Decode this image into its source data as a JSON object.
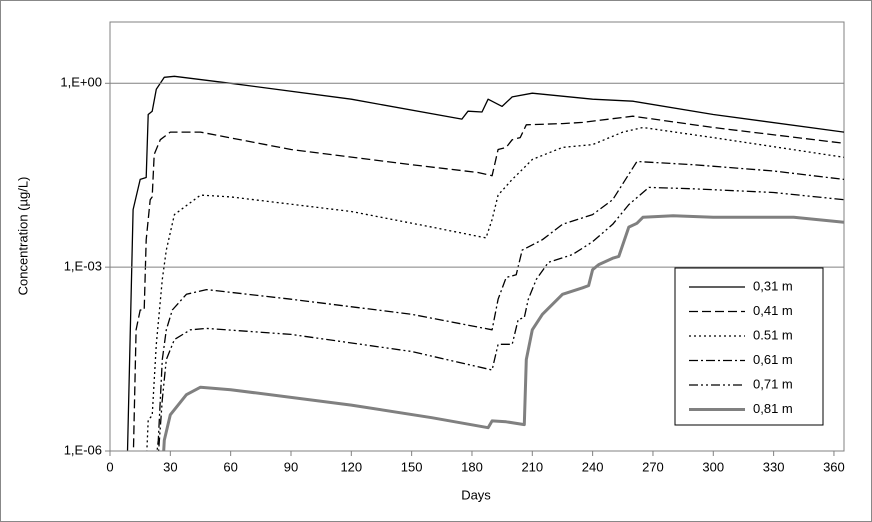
{
  "chart_data": {
    "type": "line",
    "x_label": "Days",
    "y_label": "Concentration (µg/L)",
    "xlim": [
      0,
      365
    ],
    "xticks": [
      0,
      30,
      60,
      90,
      120,
      150,
      180,
      210,
      240,
      270,
      300,
      330,
      360
    ],
    "ylim": [
      1e-06,
      10
    ],
    "yticks": [
      {
        "value": 1e-06,
        "label": "1,E-06"
      },
      {
        "value": 0.001,
        "label": "1,E-03"
      },
      {
        "value": 1,
        "label": "1,E+00"
      }
    ],
    "log_y": true,
    "grid": true,
    "legend": "lower right",
    "series": [
      {
        "name": "0,31 m",
        "color": "#000000",
        "style": "solid",
        "width": 1.3,
        "x": [
          8,
          11.5,
          15,
          18,
          19,
          21,
          23,
          27,
          32,
          60,
          120,
          175,
          178,
          185,
          188,
          195,
          200,
          210,
          240,
          260,
          300,
          365
        ],
        "values": [
          1e-07,
          0.0087,
          0.027,
          0.029,
          0.31,
          0.35,
          0.8,
          1.25,
          1.3,
          1.0,
          0.55,
          0.26,
          0.35,
          0.34,
          0.55,
          0.42,
          0.6,
          0.69,
          0.55,
          0.51,
          0.31,
          0.16
        ]
      },
      {
        "name": "0,41 m",
        "color": "#000000",
        "style": "dashed",
        "width": 1.3,
        "x": [
          11,
          13,
          15,
          17,
          18,
          20,
          21,
          22,
          25,
          30,
          45,
          90,
          150,
          183,
          190,
          193,
          197,
          200,
          204,
          207,
          225,
          235,
          260,
          300,
          365
        ],
        "values": [
          1e-07,
          9.5e-05,
          0.0002,
          0.0002,
          0.0028,
          0.0126,
          0.014,
          0.069,
          0.12,
          0.16,
          0.16,
          0.083,
          0.047,
          0.035,
          0.031,
          0.083,
          0.09,
          0.12,
          0.13,
          0.21,
          0.22,
          0.23,
          0.29,
          0.19,
          0.105
        ]
      },
      {
        "name": "0.51 m",
        "color": "#000000",
        "style": "dotted",
        "width": 1.3,
        "x": [
          17,
          19,
          21,
          23,
          26,
          28,
          32,
          45,
          60,
          120,
          160,
          187,
          190,
          193,
          200,
          205,
          210,
          225,
          240,
          255,
          265,
          300,
          365
        ],
        "values": [
          1e-07,
          3.2e-06,
          3.8e-06,
          5.5e-05,
          0.00063,
          0.0019,
          0.0072,
          0.015,
          0.014,
          0.0081,
          0.0045,
          0.003,
          0.006,
          0.015,
          0.027,
          0.039,
          0.057,
          0.09,
          0.1,
          0.16,
          0.19,
          0.13,
          0.062
        ]
      },
      {
        "name": "0,61 m",
        "color": "#000000",
        "style": "dashdot",
        "width": 1.3,
        "x": [
          20,
          24,
          26,
          28,
          31,
          38,
          48,
          90,
          150,
          190,
          193,
          197,
          202,
          205,
          215,
          225,
          240,
          250,
          262,
          290,
          330,
          365
        ],
        "values": [
          1e-07,
          1.5e-06,
          3.1e-05,
          9.5e-05,
          0.0002,
          0.00036,
          0.00043,
          0.0003,
          0.00017,
          9.5e-05,
          0.0003,
          0.00068,
          0.00075,
          0.0019,
          0.0028,
          0.005,
          0.0072,
          0.0126,
          0.053,
          0.047,
          0.037,
          0.027
        ]
      },
      {
        "name": "0,71 m",
        "color": "#000000",
        "style": "dashdotdot",
        "width": 1.3,
        "x": [
          22,
          26,
          28,
          32,
          40,
          48,
          90,
          150,
          190,
          193,
          200,
          203,
          206,
          208,
          212,
          218,
          230,
          240,
          250,
          258,
          268,
          290,
          330,
          365
        ],
        "values": [
          1e-07,
          6.9e-06,
          3.1e-05,
          6.6e-05,
          9.5e-05,
          0.0001,
          8e-05,
          4.2e-05,
          2.1e-05,
          5.5e-05,
          5.5e-05,
          0.00014,
          0.00015,
          0.0003,
          0.00063,
          0.0012,
          0.0016,
          0.0026,
          0.005,
          0.0105,
          0.02,
          0.019,
          0.0165,
          0.0126
        ]
      },
      {
        "name": "0,81 m",
        "color": "#808080",
        "style": "solid",
        "width": 3,
        "x": [
          25,
          27,
          30,
          38,
          45,
          60,
          120,
          160,
          188,
          190,
          197,
          206,
          207,
          210,
          215,
          225,
          235,
          238,
          240,
          243,
          250,
          253,
          258,
          262,
          265,
          280,
          300,
          340,
          365
        ],
        "values": [
          1e-07,
          1.5e-06,
          3.9e-06,
          8.3e-06,
          1.1e-05,
          1e-05,
          5.6e-06,
          3.5e-06,
          2.4e-06,
          3.1e-06,
          3e-06,
          2.7e-06,
          3.1e-05,
          9.5e-05,
          0.00017,
          0.00036,
          0.00046,
          0.0005,
          0.00091,
          0.0011,
          0.0014,
          0.0015,
          0.0045,
          0.0052,
          0.0065,
          0.0069,
          0.0065,
          0.0065,
          0.0054
        ]
      }
    ]
  }
}
